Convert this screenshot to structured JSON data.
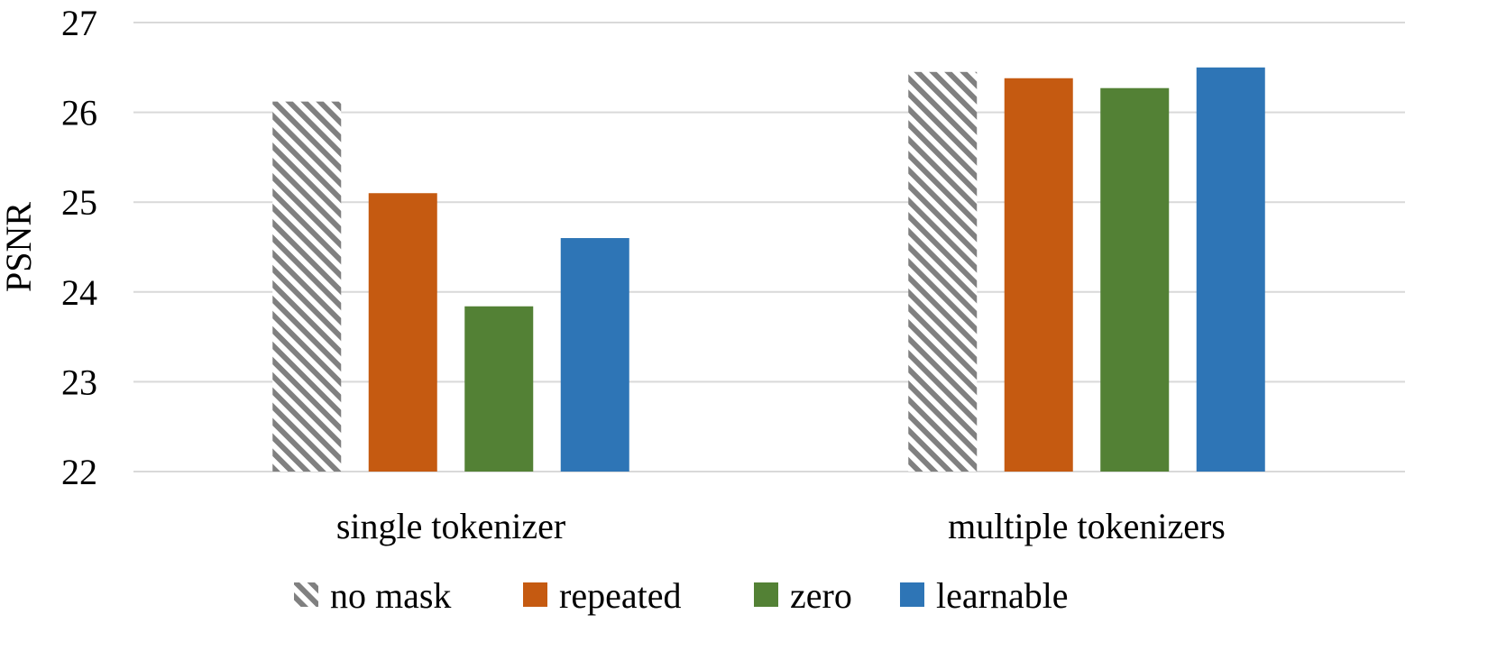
{
  "chart_data": {
    "type": "bar",
    "categories": [
      "single tokenizer",
      "multiple tokenizers"
    ],
    "series": [
      {
        "name": "no mask",
        "values": [
          26.12,
          26.45
        ],
        "color": "#808080",
        "pattern": "hatched"
      },
      {
        "name": "repeated",
        "values": [
          25.1,
          26.38
        ],
        "color": "#c55a11"
      },
      {
        "name": "zero",
        "values": [
          23.84,
          26.27
        ],
        "color": "#538135"
      },
      {
        "name": "learnable",
        "values": [
          24.6,
          26.5
        ],
        "color": "#2e75b6"
      }
    ],
    "title": "",
    "xlabel": "",
    "ylabel": "PSNR",
    "ylim": [
      22,
      27
    ],
    "yticks": [
      "22",
      "23",
      "24",
      "25",
      "26",
      "27"
    ],
    "grid": true,
    "legend_position": "bottom"
  }
}
